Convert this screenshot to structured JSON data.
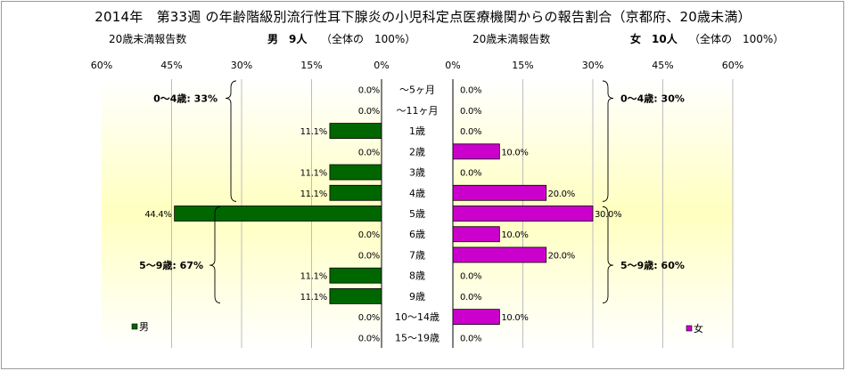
{
  "title": "2014年　第33週 の年齢階級別流行性耳下腺炎の小児科定点医療機関からの報告割合（京都府、20歳未満）",
  "header": {
    "male_left": "20歳未満報告数",
    "male_mid": "男　9人",
    "male_right": "（全体の　100%）",
    "female_left": "20歳未満報告数",
    "female_mid": "女　10人",
    "female_right": "（全体の　100%）"
  },
  "colors": {
    "male": "#006600",
    "female": "#cc00cc",
    "plot_center": "#ffffc0",
    "plot_edge": "#ffffff"
  },
  "chart_data": {
    "type": "bar",
    "orientation": "horizontal-pyramid",
    "categories": [
      "～5ヶ月",
      "～11ヶ月",
      "1歳",
      "2歳",
      "3歳",
      "4歳",
      "5歳",
      "6歳",
      "7歳",
      "8歳",
      "9歳",
      "10～14歳",
      "15～19歳"
    ],
    "series": [
      {
        "name": "男",
        "values": [
          0.0,
          0.0,
          11.1,
          0.0,
          11.1,
          11.1,
          44.4,
          0.0,
          0.0,
          11.1,
          11.1,
          0.0,
          0.0
        ],
        "labels": [
          "0.0%",
          "0.0%",
          "11.1%",
          "0.0%",
          "11.1%",
          "11.1%",
          "44.4%",
          "0.0%",
          "0.0%",
          "11.1%",
          "11.1%",
          "0.0%",
          "0.0%"
        ]
      },
      {
        "name": "女",
        "values": [
          0.0,
          0.0,
          0.0,
          10.0,
          0.0,
          20.0,
          30.0,
          10.0,
          20.0,
          0.0,
          0.0,
          10.0,
          0.0
        ],
        "labels": [
          "0.0%",
          "0.0%",
          "0.0%",
          "10.0%",
          "0.0%",
          "20.0%",
          "30.0%",
          "10.0%",
          "20.0%",
          "0.0%",
          "0.0%",
          "10.0%",
          "0.0%"
        ]
      }
    ],
    "xlim": [
      0,
      60
    ],
    "tick_labels": [
      "60%",
      "45%",
      "30%",
      "15%",
      "0%"
    ],
    "tick_labels_right": [
      "0%",
      "15%",
      "30%",
      "45%",
      "60%"
    ],
    "grid": true,
    "group_annotations": {
      "male": [
        "0～4歳: 33%",
        "5～9歳: 67%"
      ],
      "female": [
        "0～4歳: 30%",
        "5～9歳: 60%"
      ]
    },
    "legend": {
      "male": "男",
      "female": "女",
      "placement": "bottom"
    }
  }
}
